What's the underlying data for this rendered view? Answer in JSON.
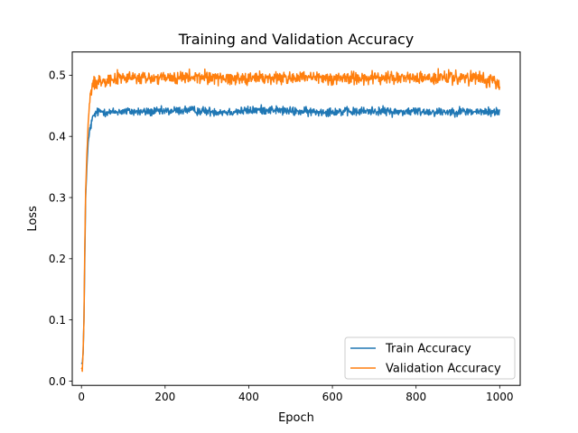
{
  "chart_data": {
    "type": "line",
    "title": "Training and Validation Accuracy",
    "xlabel": "Epoch",
    "ylabel": "Loss",
    "xlim": [
      -22,
      1049
    ],
    "ylim": [
      -0.007,
      0.538
    ],
    "xticks": [
      0,
      200,
      400,
      600,
      800,
      1000
    ],
    "xtick_labels": [
      "0",
      "200",
      "400",
      "600",
      "800",
      "1000"
    ],
    "yticks": [
      0.0,
      0.1,
      0.2,
      0.3,
      0.4,
      0.5
    ],
    "ytick_labels": [
      "0.0",
      "0.1",
      "0.2",
      "0.3",
      "0.4",
      "0.5"
    ],
    "grid": false,
    "legend": {
      "location": "lower right"
    },
    "series": [
      {
        "name": "Train Accuracy",
        "color": "#1f77b4",
        "x": [
          0,
          2,
          4,
          6,
          8,
          10,
          13,
          16,
          20,
          25,
          30,
          40,
          50,
          60,
          70,
          80,
          100,
          150,
          200,
          250,
          300,
          350,
          400,
          450,
          500,
          550,
          600,
          650,
          700,
          750,
          800,
          850,
          900,
          950,
          1000
        ],
        "y": [
          0.03,
          0.028,
          0.045,
          0.1,
          0.2,
          0.3,
          0.35,
          0.39,
          0.41,
          0.425,
          0.435,
          0.44,
          0.441,
          0.44,
          0.439,
          0.44,
          0.441,
          0.44,
          0.441,
          0.443,
          0.441,
          0.44,
          0.442,
          0.444,
          0.441,
          0.44,
          0.441,
          0.44,
          0.442,
          0.44,
          0.441,
          0.44,
          0.441,
          0.44,
          0.44
        ],
        "noise_amplitude": 0.006
      },
      {
        "name": "Validation Accuracy",
        "color": "#ff7f0e",
        "x": [
          0,
          2,
          4,
          6,
          8,
          10,
          13,
          16,
          20,
          25,
          30,
          40,
          50,
          60,
          70,
          80,
          100,
          150,
          200,
          250,
          300,
          350,
          400,
          450,
          500,
          550,
          600,
          650,
          700,
          750,
          800,
          850,
          900,
          950,
          1000
        ],
        "y": [
          0.02,
          0.018,
          0.05,
          0.1,
          0.22,
          0.31,
          0.37,
          0.42,
          0.46,
          0.48,
          0.487,
          0.49,
          0.492,
          0.494,
          0.494,
          0.495,
          0.496,
          0.495,
          0.495,
          0.496,
          0.497,
          0.495,
          0.496,
          0.495,
          0.496,
          0.495,
          0.495,
          0.496,
          0.495,
          0.496,
          0.495,
          0.496,
          0.495,
          0.495,
          0.485
        ],
        "noise_amplitude": 0.009
      }
    ]
  }
}
